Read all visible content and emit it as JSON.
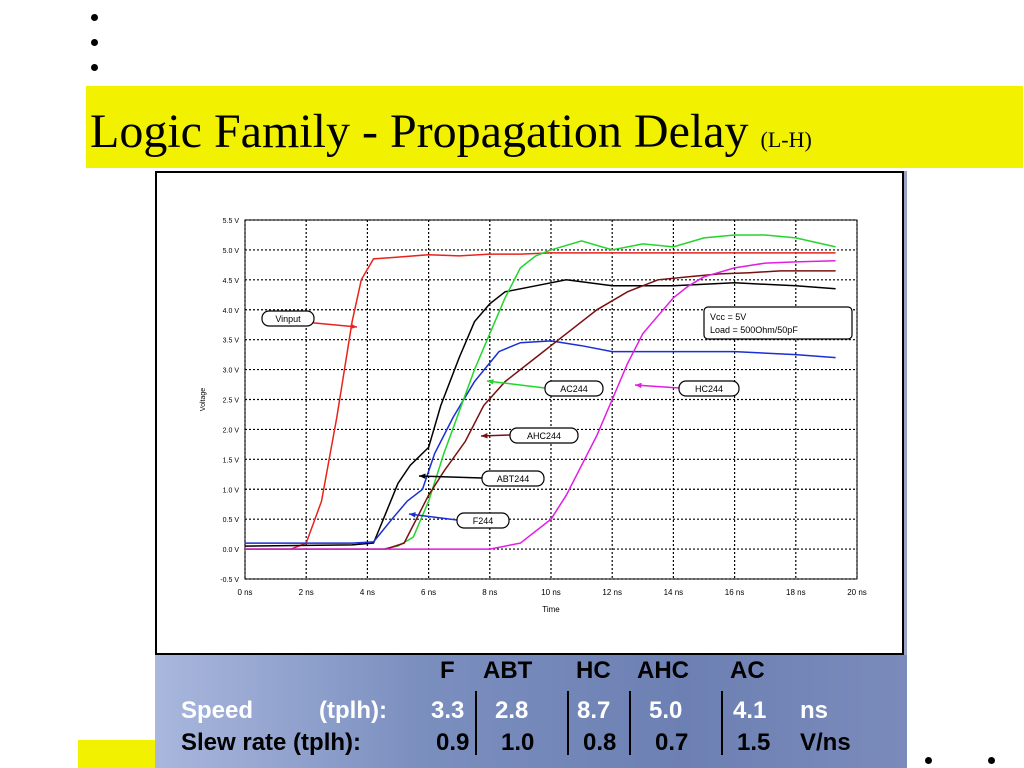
{
  "slide": {
    "title": "Logic Family - Propagation Delay",
    "title_suffix": "(L-H)",
    "colors": {
      "title_band": "#f2f200",
      "panel": "#7b8fbf"
    }
  },
  "chart_data": {
    "type": "line",
    "title": "",
    "xlabel": "Time",
    "ylabel": "Voltage",
    "xlim": [
      0,
      20
    ],
    "ylim": [
      -0.5,
      5.5
    ],
    "x_ticks": [
      "0 ns",
      "2 ns",
      "4 ns",
      "6 ns",
      "8 ns",
      "10 ns",
      "12 ns",
      "14 ns",
      "16 ns",
      "18 ns",
      "20 ns"
    ],
    "y_ticks": [
      "-0.5 V",
      "0.0 V",
      "0.5 V",
      "1.0 V",
      "1.5 V",
      "2.0 V",
      "2.5 V",
      "3.0 V",
      "3.5 V",
      "4.0 V",
      "4.5 V",
      "5.0 V",
      "5.5 V"
    ],
    "grid": true,
    "annotation_box": [
      "Vcc = 5V",
      "Load = 500Ohm/50pF"
    ],
    "series": [
      {
        "name": "Vinput",
        "color": "#e8231c",
        "points": [
          [
            0,
            0.0
          ],
          [
            1.5,
            0.0
          ],
          [
            2.0,
            0.1
          ],
          [
            2.5,
            0.8
          ],
          [
            3.0,
            2.2
          ],
          [
            3.5,
            3.8
          ],
          [
            3.8,
            4.5
          ],
          [
            4.2,
            4.85
          ],
          [
            5,
            4.88
          ],
          [
            6,
            4.92
          ],
          [
            7,
            4.9
          ],
          [
            8,
            4.93
          ],
          [
            9,
            4.93
          ],
          [
            10,
            4.95
          ],
          [
            12,
            4.95
          ],
          [
            14,
            4.95
          ],
          [
            16,
            4.95
          ],
          [
            18,
            4.95
          ],
          [
            19.3,
            4.95
          ]
        ]
      },
      {
        "name": "ABT244",
        "color": "#000000",
        "points": [
          [
            0,
            0.05
          ],
          [
            3.5,
            0.07
          ],
          [
            4.2,
            0.1
          ],
          [
            4.6,
            0.6
          ],
          [
            5.0,
            1.1
          ],
          [
            5.4,
            1.4
          ],
          [
            6.0,
            1.7
          ],
          [
            6.4,
            2.4
          ],
          [
            7.0,
            3.2
          ],
          [
            7.5,
            3.8
          ],
          [
            8.0,
            4.1
          ],
          [
            8.5,
            4.3
          ],
          [
            9.5,
            4.4
          ],
          [
            10.5,
            4.5
          ],
          [
            12,
            4.4
          ],
          [
            14,
            4.4
          ],
          [
            16,
            4.45
          ],
          [
            18,
            4.4
          ],
          [
            19.3,
            4.35
          ]
        ]
      },
      {
        "name": "F244",
        "color": "#1a2fd6",
        "points": [
          [
            0,
            0.1
          ],
          [
            3.5,
            0.1
          ],
          [
            4.2,
            0.12
          ],
          [
            4.8,
            0.5
          ],
          [
            5.3,
            0.8
          ],
          [
            5.8,
            1.0
          ],
          [
            6.2,
            1.6
          ],
          [
            6.8,
            2.2
          ],
          [
            7.5,
            2.8
          ],
          [
            8.3,
            3.3
          ],
          [
            9.0,
            3.45
          ],
          [
            10,
            3.48
          ],
          [
            11,
            3.4
          ],
          [
            12,
            3.3
          ],
          [
            14,
            3.3
          ],
          [
            16,
            3.3
          ],
          [
            18,
            3.25
          ],
          [
            19.3,
            3.2
          ]
        ]
      },
      {
        "name": "AC244",
        "color": "#22d62b",
        "points": [
          [
            0,
            0.0
          ],
          [
            4.5,
            0.0
          ],
          [
            5.0,
            0.05
          ],
          [
            5.5,
            0.2
          ],
          [
            6.0,
            0.8
          ],
          [
            6.5,
            1.6
          ],
          [
            7.0,
            2.3
          ],
          [
            7.5,
            3.0
          ],
          [
            8.0,
            3.6
          ],
          [
            8.5,
            4.2
          ],
          [
            9.0,
            4.7
          ],
          [
            9.5,
            4.9
          ],
          [
            10.0,
            5.0
          ],
          [
            11,
            5.15
          ],
          [
            12,
            5.0
          ],
          [
            13,
            5.1
          ],
          [
            14,
            5.05
          ],
          [
            15,
            5.2
          ],
          [
            16,
            5.25
          ],
          [
            17,
            5.25
          ],
          [
            18,
            5.2
          ],
          [
            19.3,
            5.05
          ]
        ]
      },
      {
        "name": "AHC244",
        "color": "#7a1010",
        "points": [
          [
            0,
            0.0
          ],
          [
            4.6,
            0.0
          ],
          [
            5.2,
            0.1
          ],
          [
            6.0,
            0.9
          ],
          [
            6.5,
            1.3
          ],
          [
            7.2,
            1.8
          ],
          [
            7.8,
            2.4
          ],
          [
            8.5,
            2.8
          ],
          [
            9.5,
            3.2
          ],
          [
            10.5,
            3.6
          ],
          [
            11.5,
            4.0
          ],
          [
            12.5,
            4.3
          ],
          [
            13.5,
            4.5
          ],
          [
            14.5,
            4.55
          ],
          [
            15.5,
            4.6
          ],
          [
            16.5,
            4.62
          ],
          [
            17.5,
            4.65
          ],
          [
            19.3,
            4.65
          ]
        ]
      },
      {
        "name": "HC244",
        "color": "#e21de5",
        "points": [
          [
            0,
            0.0
          ],
          [
            4,
            0.0
          ],
          [
            8,
            0.0
          ],
          [
            9.0,
            0.1
          ],
          [
            10.0,
            0.5
          ],
          [
            10.5,
            0.9
          ],
          [
            11.0,
            1.4
          ],
          [
            11.5,
            1.9
          ],
          [
            12.0,
            2.5
          ],
          [
            12.5,
            3.1
          ],
          [
            13.0,
            3.6
          ],
          [
            13.5,
            3.9
          ],
          [
            14.0,
            4.2
          ],
          [
            14.5,
            4.4
          ],
          [
            15.0,
            4.55
          ],
          [
            16.0,
            4.7
          ],
          [
            17.0,
            4.78
          ],
          [
            18.0,
            4.8
          ],
          [
            19.3,
            4.82
          ]
        ]
      }
    ],
    "callouts": [
      {
        "label": "Vinput",
        "color": "#e8231c"
      },
      {
        "label": "AC244",
        "color": "#22d62b"
      },
      {
        "label": "HC244",
        "color": "#e21de5"
      },
      {
        "label": "AHC244",
        "color": "#7a1010"
      },
      {
        "label": "ABT244",
        "color": "#000000"
      },
      {
        "label": "F244",
        "color": "#1a2fd6"
      }
    ]
  },
  "table": {
    "headers": [
      "F",
      "ABT",
      "HC",
      "AHC",
      "AC"
    ],
    "speed_label": "Speed",
    "speed_param": "(tplh):",
    "speed_values": [
      "3.3",
      "2.8",
      "8.7",
      "5.0",
      "4.1"
    ],
    "speed_unit": "ns",
    "slew_label": "Slew rate (tplh):",
    "slew_values": [
      "0.9",
      "1.0",
      "0.8",
      "0.7",
      "1.5"
    ],
    "slew_unit": "V/ns"
  }
}
